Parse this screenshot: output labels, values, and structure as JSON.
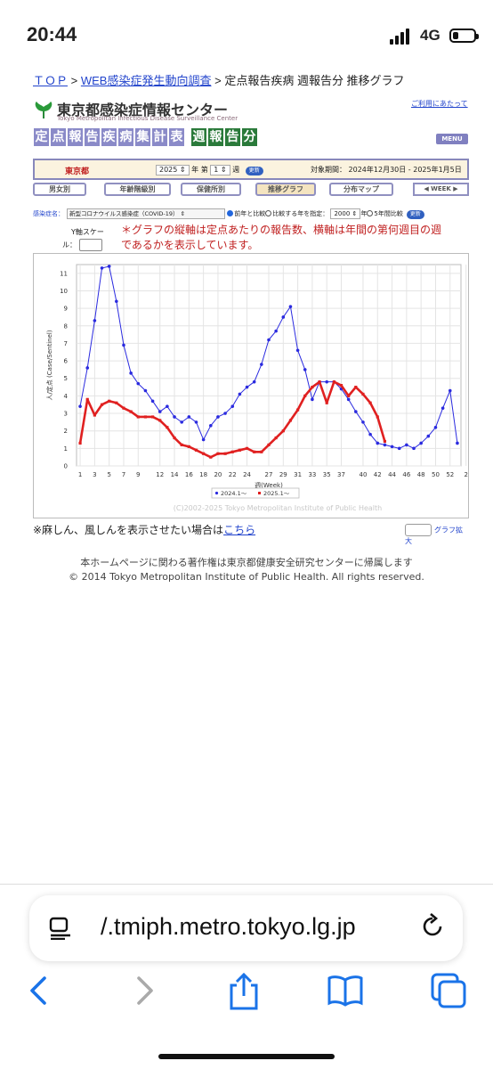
{
  "status": {
    "time": "20:44",
    "network": "4G",
    "battery_fraction": 0.25
  },
  "breadcrumb": {
    "top": "ＴＯＰ",
    "sep1": ">",
    "survey": "WEB感染症発生動向調査",
    "sep2": ">",
    "current": "定点報告疾病 週報告分 推移グラフ"
  },
  "header": {
    "logo_jp": "東京都感染症情報センター",
    "logo_en": "Tokyo Metropolitan Infectious Disease Surveillance Center",
    "terms_link": "ご利用にあたって",
    "title_a": [
      "定",
      "点",
      "報",
      "告",
      "疾",
      "病",
      "集",
      "計",
      "表"
    ],
    "title_b": [
      "週",
      "報",
      "告",
      "分"
    ],
    "menu": "MENU"
  },
  "selector": {
    "prefecture": "東京都",
    "year": "2025",
    "year_unit": "年 第",
    "week": "1",
    "week_unit": "週",
    "update": "更新",
    "period": "対象期間： 2024年12月30日 - 2025年1月5日"
  },
  "nav": {
    "sex": "男女別",
    "age": "年齢階級別",
    "health_center": "保健所別",
    "trend": "推移グラフ",
    "distribution": "分布マップ",
    "week_nav": "WEEK"
  },
  "disease": {
    "label": "感染症名：",
    "selected": "新型コロナウイルス感染症（COVID-19）",
    "compare_prev": "前年と比較",
    "compare_year": "比較する年を指定：",
    "compare_year_value": "2000",
    "compare_year_unit": "年",
    "five_year": "5年間比較",
    "update": "更新"
  },
  "yscale": {
    "label1": "Y軸スケー",
    "label2": "ル："
  },
  "note": "＊グラフの縦軸は定点あたりの報告数、横軸は年間の第何週目の週であるかを表示しています。",
  "chart_data": {
    "type": "line",
    "ylabel": "人/定点 (Case/Sentinel)",
    "xlabel": "週(Week)",
    "ylim": [
      0,
      11.5
    ],
    "y_ticks": [
      "0",
      "1",
      "2",
      "3",
      "4",
      "5",
      "6",
      "7",
      "8",
      "9",
      "10",
      "11"
    ],
    "x_ticks": [
      "1",
      "3",
      "5",
      "7",
      "9",
      "12",
      "14",
      "16",
      "18",
      "20",
      "22",
      "24",
      "27",
      "29",
      "31",
      "33",
      "35",
      "37",
      "40",
      "42",
      "44",
      "46",
      "48",
      "50",
      "52",
      "2"
    ],
    "grid": true,
    "legend_position": "bottom",
    "watermark": "(C)2002-2025 Tokyo Metropolitan Institute of Public Health",
    "series": [
      {
        "name": "2024.1〜",
        "color": "#2a2adf",
        "style": "thin",
        "values": [
          3.4,
          5.6,
          8.3,
          11.3,
          11.4,
          9.4,
          6.9,
          5.3,
          4.7,
          4.3,
          3.7,
          3.1,
          3.4,
          2.8,
          2.5,
          2.8,
          2.5,
          1.5,
          2.3,
          2.8,
          3.0,
          3.4,
          4.1,
          4.5,
          4.8,
          5.8,
          7.2,
          7.7,
          8.5,
          9.1,
          6.6,
          5.5,
          3.8,
          4.8,
          4.8,
          4.8,
          4.4,
          3.8,
          3.1,
          2.5,
          1.8,
          1.3,
          1.2,
          1.1,
          1.0,
          1.2,
          1.0,
          1.3,
          1.7,
          2.2,
          3.3,
          4.3,
          1.3
        ]
      },
      {
        "name": "2025.1〜",
        "color": "#e02020",
        "style": "thick",
        "values": [
          1.3,
          3.8,
          2.9,
          3.5,
          3.7,
          3.6,
          3.3,
          3.1,
          2.8,
          2.8,
          2.8,
          2.6,
          2.2,
          1.6,
          1.2,
          1.1,
          0.9,
          0.7,
          0.5,
          0.7,
          0.7,
          0.8,
          0.9,
          1.0,
          0.8,
          0.8,
          1.2,
          1.6,
          2.0,
          2.6,
          3.2,
          4.0,
          4.5,
          4.8,
          3.6,
          4.8,
          4.6,
          4.0,
          4.5,
          4.1,
          3.6,
          2.8,
          1.4
        ]
      }
    ]
  },
  "footer": {
    "measles_prefix": "※麻しん、風しんを表示させたい場合は",
    "measles_link": "こちら",
    "graph_zoom": "グラフ拡大",
    "copyright1": "本ホームページに関わる著作権は東京都健康安全研究センターに帰属します",
    "copyright2": "© 2014 Tokyo Metropolitan Institute of Public Health. All rights reserved."
  },
  "browser": {
    "url": "/.tmiph.metro.tokyo.lg.jp"
  }
}
